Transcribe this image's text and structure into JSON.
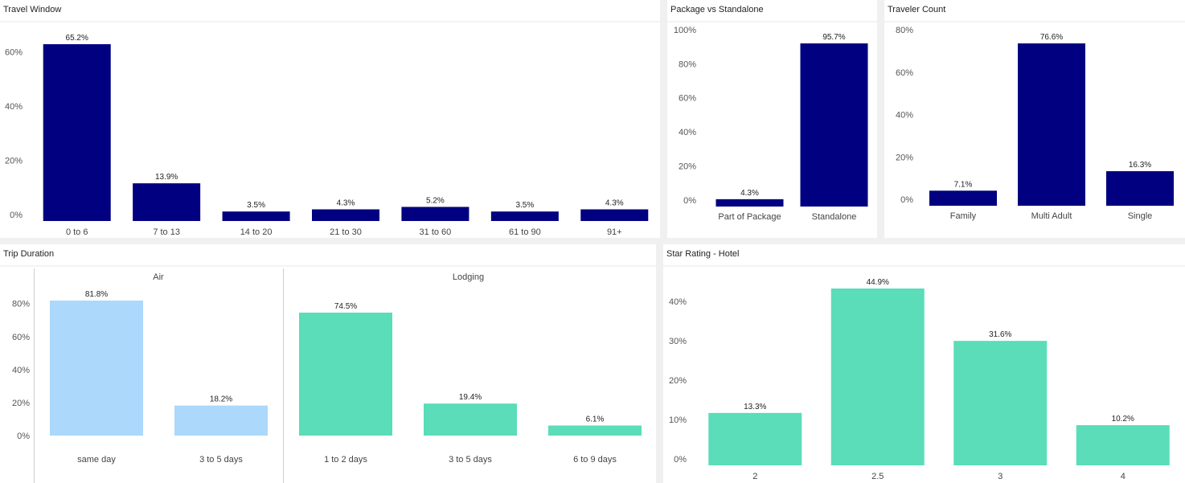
{
  "colors": {
    "navy": "#000080",
    "air": "#abd8fb",
    "lodging": "#5addb8"
  },
  "chart_data": [
    {
      "id": "travel-window",
      "type": "bar",
      "title": "Travel Window",
      "categories": [
        "0 to 6",
        "7 to 13",
        "14 to 20",
        "21 to 30",
        "31 to 60",
        "61 to 90",
        "91+"
      ],
      "values": [
        65.2,
        13.9,
        3.5,
        4.3,
        5.2,
        3.5,
        4.3
      ],
      "value_labels": [
        "65.2%",
        "13.9%",
        "3.5%",
        "4.3%",
        "5.2%",
        "3.5%",
        "4.3%"
      ],
      "yticks": [
        0,
        20,
        40,
        60
      ],
      "ytick_labels": [
        "0%",
        "20%",
        "40%",
        "60%"
      ],
      "ylim": [
        0,
        65.2
      ],
      "color": "navy"
    },
    {
      "id": "package-vs-standalone",
      "type": "bar",
      "title": "Package vs Standalone",
      "categories": [
        "Part of Package",
        "Standalone"
      ],
      "values": [
        4.3,
        95.7
      ],
      "value_labels": [
        "4.3%",
        "95.7%"
      ],
      "yticks": [
        0,
        20,
        40,
        60,
        80,
        100
      ],
      "ytick_labels": [
        "0%",
        "20%",
        "40%",
        "60%",
        "80%",
        "100%"
      ],
      "ylim": [
        0,
        95.7
      ],
      "color": "navy"
    },
    {
      "id": "traveler-count",
      "type": "bar",
      "title": "Traveler Count",
      "categories": [
        "Family",
        "Multi Adult",
        "Single"
      ],
      "values": [
        7.1,
        76.6,
        16.3
      ],
      "value_labels": [
        "7.1%",
        "76.6%",
        "16.3%"
      ],
      "yticks": [
        0,
        20,
        40,
        60,
        80
      ],
      "ytick_labels": [
        "0%",
        "20%",
        "40%",
        "60%",
        "80%"
      ],
      "ylim": [
        0,
        76.6
      ],
      "color": "navy"
    },
    {
      "id": "trip-duration",
      "type": "bar",
      "title": "Trip Duration",
      "yticks": [
        0,
        20,
        40,
        60,
        80
      ],
      "ytick_labels": [
        "0%",
        "20%",
        "40%",
        "60%",
        "80%"
      ],
      "ylim": [
        0,
        81.8
      ],
      "facets": [
        {
          "name": "Air",
          "categories": [
            "same day",
            "3 to 5 days"
          ],
          "values": [
            81.8,
            18.2
          ],
          "value_labels": [
            "81.8%",
            "18.2%"
          ],
          "color": "air"
        },
        {
          "name": "Lodging",
          "categories": [
            "1 to 2 days",
            "3 to 5 days",
            "6 to 9 days"
          ],
          "values": [
            74.5,
            19.4,
            6.1
          ],
          "value_labels": [
            "74.5%",
            "19.4%",
            "6.1%"
          ],
          "color": "lodging"
        }
      ]
    },
    {
      "id": "star-rating-hotel",
      "type": "bar",
      "title": "Star Rating - Hotel",
      "categories": [
        "2",
        "2.5",
        "3",
        "4"
      ],
      "values": [
        13.3,
        44.9,
        31.6,
        10.2
      ],
      "value_labels": [
        "13.3%",
        "44.9%",
        "31.6%",
        "10.2%"
      ],
      "yticks": [
        0,
        10,
        20,
        30,
        40
      ],
      "ytick_labels": [
        "0%",
        "10%",
        "20%",
        "30%",
        "40%"
      ],
      "ylim": [
        0,
        44.9
      ],
      "color": "lodging"
    }
  ]
}
